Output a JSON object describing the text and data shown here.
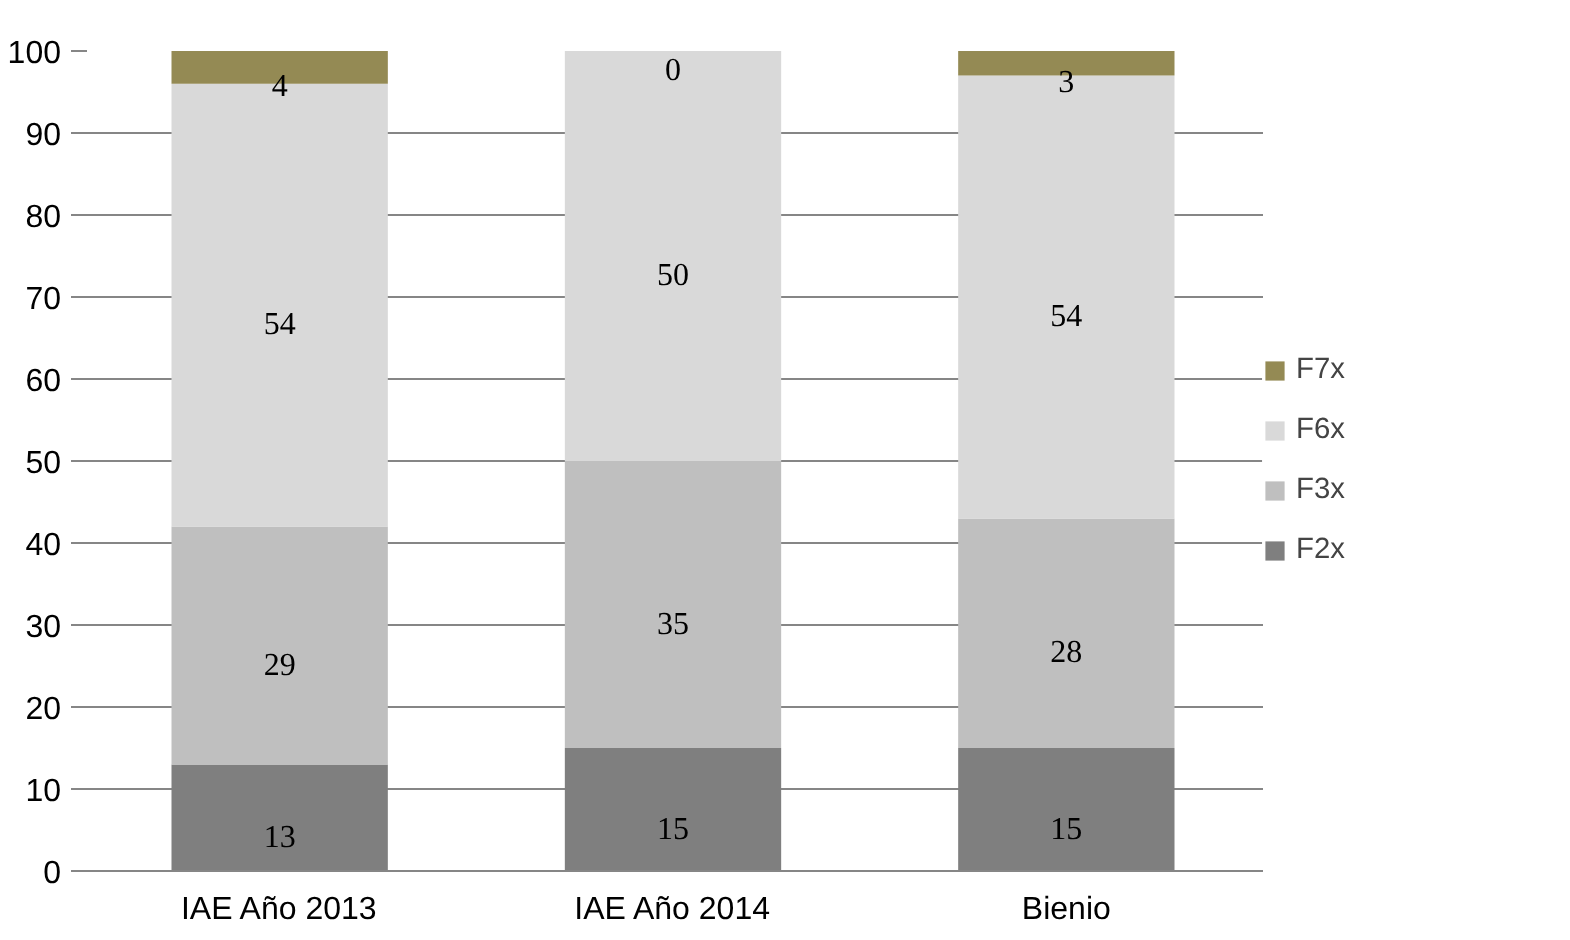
{
  "chart_data": {
    "type": "bar",
    "stacked": true,
    "categories": [
      "IAE Año 2013",
      "IAE Año 2014",
      "Bienio"
    ],
    "series": [
      {
        "name": "F2x",
        "color": "#7f7f7f",
        "values": [
          13,
          15,
          15
        ]
      },
      {
        "name": "F3x",
        "color": "#bfbfbf",
        "values": [
          29,
          35,
          28
        ]
      },
      {
        "name": "F6x",
        "color": "#d9d9d9",
        "values": [
          54,
          50,
          54
        ]
      },
      {
        "name": "F7x",
        "color": "#948a54",
        "values": [
          4,
          0,
          3
        ]
      }
    ],
    "ylim": [
      0,
      100
    ],
    "yticks": [
      0,
      10,
      20,
      30,
      40,
      50,
      60,
      70,
      80,
      90,
      100
    ],
    "grid": "y",
    "legend": "right",
    "data_labels": true
  }
}
